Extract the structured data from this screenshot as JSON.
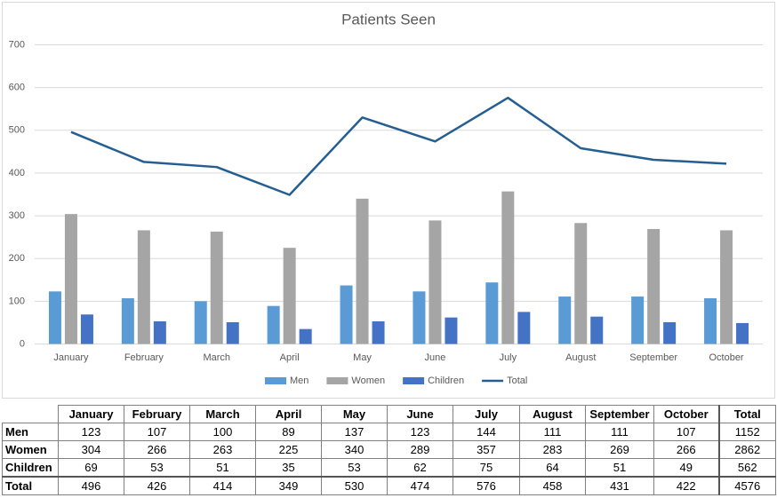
{
  "chart_data": {
    "type": "bar-line",
    "title": "Patients Seen",
    "categories": [
      "January",
      "February",
      "March",
      "April",
      "May",
      "June",
      "July",
      "August",
      "September",
      "October"
    ],
    "series": [
      {
        "name": "Men",
        "type": "bar",
        "color": "#5b9bd5",
        "values": [
          123,
          107,
          100,
          89,
          137,
          123,
          144,
          111,
          111,
          107
        ]
      },
      {
        "name": "Women",
        "type": "bar",
        "color": "#a5a5a5",
        "values": [
          304,
          266,
          263,
          225,
          340,
          289,
          357,
          283,
          269,
          266
        ]
      },
      {
        "name": "Children",
        "type": "bar",
        "color": "#4472c4",
        "values": [
          69,
          53,
          51,
          35,
          53,
          62,
          75,
          64,
          51,
          49
        ]
      },
      {
        "name": "Total",
        "type": "line",
        "color": "#255e91",
        "values": [
          496,
          426,
          414,
          349,
          530,
          474,
          576,
          458,
          431,
          422
        ]
      }
    ],
    "ylim": [
      0,
      700
    ],
    "yticks": [
      0,
      100,
      200,
      300,
      400,
      500,
      600,
      700
    ],
    "grid": true,
    "legend": "bottom"
  },
  "table": {
    "columns": [
      "January",
      "February",
      "March",
      "April",
      "May",
      "June",
      "July",
      "August",
      "September",
      "October",
      "Total"
    ],
    "rows": [
      {
        "label": "Men",
        "values": [
          123,
          107,
          100,
          89,
          137,
          123,
          144,
          111,
          111,
          107,
          1152
        ]
      },
      {
        "label": "Women",
        "values": [
          304,
          266,
          263,
          225,
          340,
          289,
          357,
          283,
          269,
          266,
          2862
        ]
      },
      {
        "label": "Children",
        "values": [
          69,
          53,
          51,
          35,
          53,
          62,
          75,
          64,
          51,
          49,
          562
        ]
      },
      {
        "label": "Total",
        "values": [
          496,
          426,
          414,
          349,
          530,
          474,
          576,
          458,
          431,
          422,
          4576
        ]
      }
    ]
  }
}
